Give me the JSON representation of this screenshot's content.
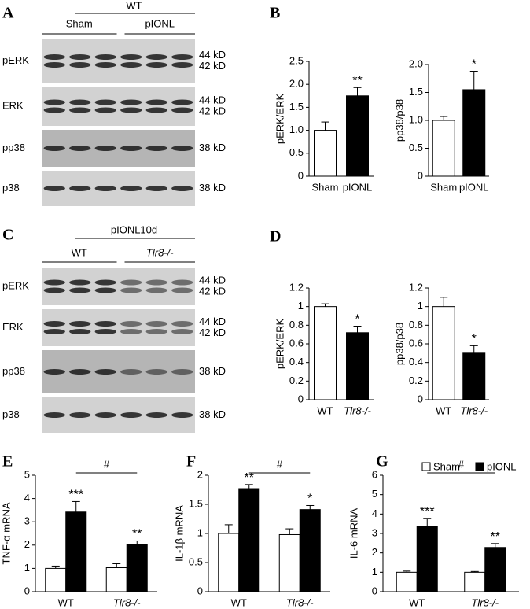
{
  "panels": [
    "A",
    "B",
    "C",
    "D",
    "E",
    "F",
    "G"
  ],
  "blots": [
    {
      "group": "WT",
      "subgroups": [
        "Sham",
        "pIONL"
      ],
      "rows": [
        {
          "name": "pERK",
          "kd": [
            "44 kD",
            "42 kD"
          ]
        },
        {
          "name": "ERK",
          "kd": [
            "44 kD",
            "42 kD"
          ]
        },
        {
          "name": "pp38",
          "kd": [
            "38 kD"
          ]
        },
        {
          "name": "p38",
          "kd": [
            "38 kD"
          ]
        }
      ]
    },
    {
      "group": "pIONL10d",
      "subgroups": [
        "WT",
        "Tlr8-/-"
      ],
      "rows": [
        {
          "name": "pERK",
          "kd": [
            "44 kD",
            "42 kD"
          ]
        },
        {
          "name": "ERK",
          "kd": [
            "44 kD",
            "42 kD"
          ]
        },
        {
          "name": "pp38",
          "kd": [
            "38 kD"
          ]
        },
        {
          "name": "p38",
          "kd": [
            "38 kD"
          ]
        }
      ]
    }
  ],
  "chart_data": [
    {
      "type": "bar",
      "ylabel": "pERK/ERK",
      "categories": [
        "Sham",
        "pIONL"
      ],
      "values": [
        1.0,
        1.75
      ],
      "errors": [
        0.18,
        0.18
      ],
      "annotations": [
        null,
        "**"
      ],
      "colors": [
        "#ffffff",
        "#000000"
      ],
      "ylim": [
        0,
        2.5
      ],
      "yticks": [
        0,
        0.5,
        {
          "value": 1,
          "label": "1.0"
        },
        1.5,
        {
          "value": 2,
          "label": "2.0"
        },
        2.5
      ]
    },
    {
      "type": "bar",
      "ylabel": "pp38/p38",
      "categories": [
        "Sham",
        "pIONL"
      ],
      "values": [
        1.0,
        1.55
      ],
      "errors": [
        0.07,
        0.33
      ],
      "annotations": [
        null,
        "*"
      ],
      "colors": [
        "#ffffff",
        "#000000"
      ],
      "ylim": [
        0,
        2
      ],
      "yticks": [
        0,
        0.5,
        {
          "value": 1,
          "label": "1.0"
        },
        1.5,
        {
          "value": 2,
          "label": "2.0"
        }
      ]
    },
    {
      "type": "bar",
      "ylabel": "pERK/ERK",
      "categories": [
        "WT",
        "Tlr8-/-"
      ],
      "values": [
        1.0,
        0.72
      ],
      "errors": [
        0.03,
        0.07
      ],
      "annotations": [
        null,
        "*"
      ],
      "colors": [
        "#ffffff",
        "#000000"
      ],
      "ylim": [
        0,
        1.2
      ],
      "yticks": [
        0,
        0.2,
        0.4,
        0.6,
        0.8,
        1,
        1.2
      ]
    },
    {
      "type": "bar",
      "ylabel": "pp38/p38",
      "categories": [
        "WT",
        "Tlr8-/-"
      ],
      "values": [
        1.0,
        0.5
      ],
      "errors": [
        0.1,
        0.08
      ],
      "annotations": [
        null,
        "*"
      ],
      "colors": [
        "#ffffff",
        "#000000"
      ],
      "ylim": [
        0,
        1.2
      ],
      "yticks": [
        0,
        0.2,
        0.4,
        0.6,
        0.8,
        1,
        1.2
      ]
    },
    {
      "type": "grouped-bar",
      "ylabel": "TNF-α mRNA",
      "categories": [
        "WT",
        "Tlr8-/-"
      ],
      "series": [
        {
          "color": "#ffffff",
          "values": [
            1.0,
            1.03
          ],
          "errors": [
            0.1,
            0.17
          ],
          "annotations": [
            null,
            null
          ]
        },
        {
          "color": "#000000",
          "values": [
            3.42,
            2.03
          ],
          "errors": [
            0.45,
            0.15
          ],
          "annotations": [
            "***",
            "**"
          ]
        }
      ],
      "bracket": "#",
      "legend": false,
      "ylim": [
        0,
        5
      ],
      "yticks": [
        0,
        1,
        2,
        3,
        4,
        5
      ]
    },
    {
      "type": "grouped-bar",
      "ylabel": "IL-1β mRNA",
      "categories": [
        "WT",
        "Tlr8-/-"
      ],
      "series": [
        {
          "color": "#ffffff",
          "values": [
            1.0,
            0.98
          ],
          "errors": [
            0.15,
            0.1
          ],
          "annotations": [
            null,
            null
          ]
        },
        {
          "color": "#000000",
          "values": [
            1.77,
            1.41
          ],
          "errors": [
            0.07,
            0.07
          ],
          "annotations": [
            "**",
            "*"
          ]
        }
      ],
      "bracket": "#",
      "legend": false,
      "ylim": [
        0,
        2
      ],
      "yticks": [
        0,
        0.5,
        1,
        1.5,
        2
      ]
    },
    {
      "type": "grouped-bar",
      "ylabel": "IL-6 mRNA",
      "categories": [
        "WT",
        "Tlr8-/-"
      ],
      "series": [
        {
          "name": "Sham",
          "color": "#ffffff",
          "values": [
            1.0,
            1.0
          ],
          "errors": [
            0.06,
            0.04
          ],
          "annotations": [
            null,
            null
          ]
        },
        {
          "name": "pIONL",
          "color": "#000000",
          "values": [
            3.38,
            2.28
          ],
          "errors": [
            0.4,
            0.2
          ],
          "annotations": [
            "***",
            "**"
          ]
        }
      ],
      "bracket": "#",
      "legend": true,
      "ylim": [
        0,
        6
      ],
      "yticks": [
        0,
        1,
        2,
        3,
        4,
        5,
        6
      ]
    }
  ]
}
